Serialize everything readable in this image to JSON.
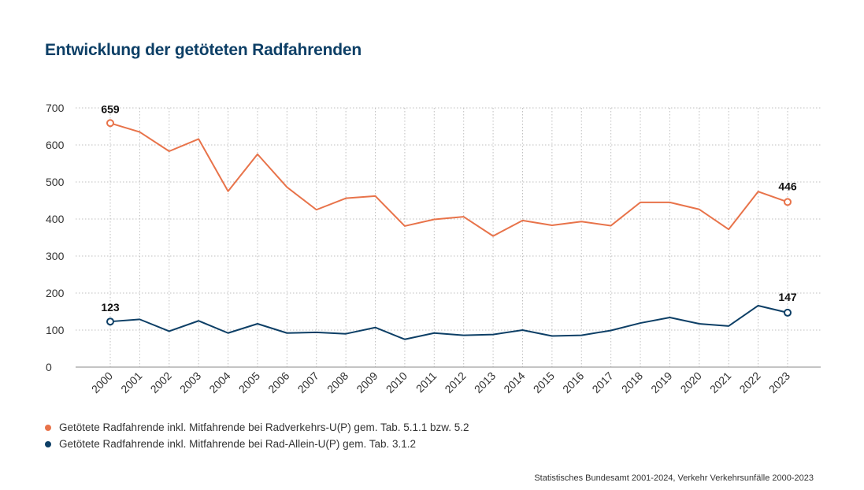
{
  "title": "Entwicklung der getöteten Radfahrenden",
  "source": "Statistisches Bundesamt 2001-2024, Verkehr Verkehrsunfälle 2000-2023",
  "colors": {
    "series1": "#e8734a",
    "series2": "#0d3f66",
    "grid": "#bfbfbf",
    "axis": "#888888"
  },
  "chart_data": {
    "type": "line",
    "title": "Entwicklung der getöteten Radfahrenden",
    "x": [
      "2000",
      "2001",
      "2002",
      "2003",
      "2004",
      "2005",
      "2006",
      "2007",
      "2008",
      "2009",
      "2010",
      "2011",
      "2012",
      "2013",
      "2014",
      "2015",
      "2016",
      "2017",
      "2018",
      "2019",
      "2020",
      "2021",
      "2022",
      "2023"
    ],
    "ylim": [
      0,
      700
    ],
    "yticks": [
      0,
      100,
      200,
      300,
      400,
      500,
      600,
      700
    ],
    "grid": true,
    "legend_position": "bottom-left",
    "series": [
      {
        "name": "Getötete Radfahrende inkl. Mitfahrende bei Radverkehrs-U(P) gem. Tab. 5.1.1 bzw. 5.2",
        "color": "#e8734a",
        "values": [
          659,
          635,
          583,
          616,
          475,
          575,
          486,
          425,
          456,
          462,
          381,
          399,
          406,
          354,
          396,
          383,
          393,
          382,
          445,
          445,
          426,
          372,
          474,
          446
        ],
        "labels": {
          "first": "659",
          "last": "446"
        }
      },
      {
        "name": "Getötete Radfahrende inkl. Mitfahrende bei Rad-Allein-U(P) gem. Tab. 3.1.2",
        "color": "#0d3f66",
        "values": [
          123,
          129,
          97,
          125,
          92,
          117,
          92,
          94,
          90,
          107,
          75,
          92,
          86,
          88,
          100,
          84,
          86,
          99,
          119,
          134,
          117,
          111,
          166,
          147
        ],
        "labels": {
          "first": "123",
          "last": "147"
        }
      }
    ]
  }
}
